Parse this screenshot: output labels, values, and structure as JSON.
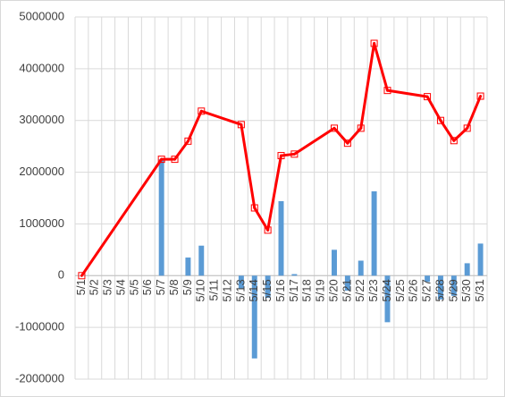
{
  "chart_data": {
    "type": "combo",
    "categories": [
      "5/1",
      "5/2",
      "5/3",
      "5/4",
      "5/5",
      "5/6",
      "5/7",
      "5/8",
      "5/9",
      "5/10",
      "5/11",
      "5/12",
      "5/13",
      "5/14",
      "5/15",
      "5/16",
      "5/17",
      "5/18",
      "5/19",
      "5/20",
      "5/21",
      "5/22",
      "5/23",
      "5/24",
      "5/25",
      "5/26",
      "5/27",
      "5/28",
      "5/29",
      "5/30",
      "5/31"
    ],
    "series": [
      {
        "type": "bar",
        "color": "#5b9bd5",
        "values": [
          0,
          null,
          null,
          null,
          null,
          null,
          2250000,
          0,
          350000,
          580000,
          null,
          null,
          -250000,
          -1600000,
          -430000,
          1440000,
          30000,
          null,
          null,
          500000,
          -290000,
          290000,
          1630000,
          -900000,
          null,
          null,
          -120000,
          -460000,
          -390000,
          240000,
          620000
        ]
      },
      {
        "type": "line",
        "color": "#ff0000",
        "values": [
          0,
          null,
          null,
          null,
          null,
          null,
          2250000,
          2250000,
          2600000,
          3180000,
          null,
          null,
          2920000,
          1310000,
          880000,
          2320000,
          2350000,
          null,
          null,
          2850000,
          2560000,
          2850000,
          4490000,
          3580000,
          null,
          null,
          3460000,
          3000000,
          2610000,
          2850000,
          3470000
        ]
      }
    ],
    "span_gaps": true,
    "ylim": [
      -2000000,
      5000000
    ],
    "yticks": [
      -2000000,
      -1000000,
      0,
      1000000,
      2000000,
      3000000,
      4000000,
      5000000
    ],
    "grid": true
  }
}
